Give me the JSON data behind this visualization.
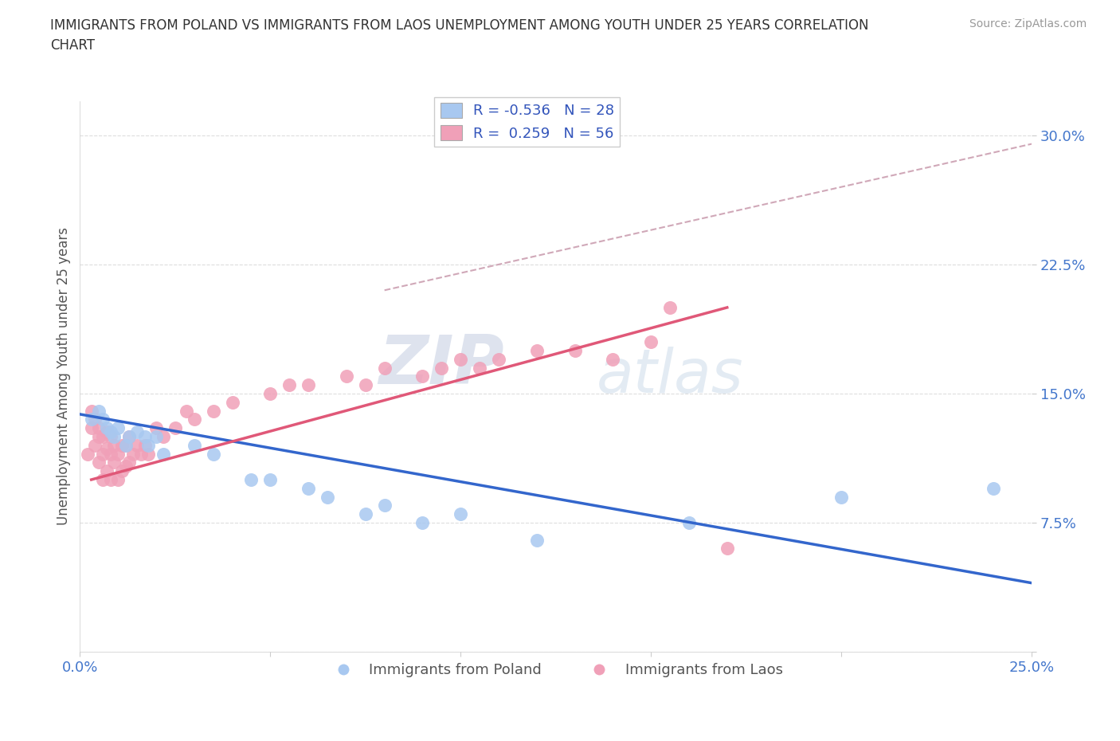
{
  "title": "IMMIGRANTS FROM POLAND VS IMMIGRANTS FROM LAOS UNEMPLOYMENT AMONG YOUTH UNDER 25 YEARS CORRELATION\nCHART",
  "source_text": "Source: ZipAtlas.com",
  "ylabel": "Unemployment Among Youth under 25 years",
  "xlim": [
    0.0,
    0.25
  ],
  "ylim": [
    0.0,
    0.32
  ],
  "poland_color": "#a8c8f0",
  "laos_color": "#f0a0b8",
  "poland_line_color": "#3366cc",
  "laos_line_color": "#e05878",
  "dashed_line_color": "#d0a8b8",
  "poland_R": -0.536,
  "poland_N": 28,
  "laos_R": 0.259,
  "laos_N": 56,
  "watermark_zip": "ZIP",
  "watermark_atlas": "atlas",
  "poland_scatter_x": [
    0.003,
    0.005,
    0.006,
    0.007,
    0.008,
    0.009,
    0.01,
    0.012,
    0.013,
    0.015,
    0.017,
    0.018,
    0.02,
    0.022,
    0.03,
    0.035,
    0.045,
    0.05,
    0.06,
    0.065,
    0.075,
    0.08,
    0.09,
    0.1,
    0.12,
    0.16,
    0.2,
    0.24
  ],
  "poland_scatter_y": [
    0.135,
    0.14,
    0.135,
    0.13,
    0.128,
    0.125,
    0.13,
    0.12,
    0.125,
    0.128,
    0.125,
    0.12,
    0.125,
    0.115,
    0.12,
    0.115,
    0.1,
    0.1,
    0.095,
    0.09,
    0.08,
    0.085,
    0.075,
    0.08,
    0.065,
    0.075,
    0.09,
    0.095
  ],
  "laos_scatter_x": [
    0.002,
    0.003,
    0.003,
    0.004,
    0.004,
    0.005,
    0.005,
    0.005,
    0.006,
    0.006,
    0.006,
    0.007,
    0.007,
    0.007,
    0.008,
    0.008,
    0.008,
    0.009,
    0.009,
    0.01,
    0.01,
    0.011,
    0.011,
    0.012,
    0.012,
    0.013,
    0.013,
    0.014,
    0.015,
    0.016,
    0.017,
    0.018,
    0.02,
    0.022,
    0.025,
    0.028,
    0.03,
    0.035,
    0.04,
    0.05,
    0.055,
    0.06,
    0.07,
    0.075,
    0.08,
    0.09,
    0.095,
    0.1,
    0.105,
    0.11,
    0.12,
    0.13,
    0.14,
    0.15,
    0.155,
    0.17
  ],
  "laos_scatter_y": [
    0.115,
    0.13,
    0.14,
    0.12,
    0.135,
    0.11,
    0.125,
    0.13,
    0.1,
    0.115,
    0.125,
    0.105,
    0.118,
    0.128,
    0.1,
    0.115,
    0.125,
    0.11,
    0.12,
    0.1,
    0.115,
    0.105,
    0.12,
    0.108,
    0.12,
    0.11,
    0.125,
    0.115,
    0.12,
    0.115,
    0.12,
    0.115,
    0.13,
    0.125,
    0.13,
    0.14,
    0.135,
    0.14,
    0.145,
    0.15,
    0.155,
    0.155,
    0.16,
    0.155,
    0.165,
    0.16,
    0.165,
    0.17,
    0.165,
    0.17,
    0.175,
    0.175,
    0.17,
    0.18,
    0.2,
    0.06
  ],
  "poland_line": [
    0.0,
    0.25,
    0.138,
    0.04
  ],
  "laos_line": [
    0.003,
    0.17,
    0.1,
    0.2
  ],
  "dashed_line": [
    0.08,
    0.25,
    0.21,
    0.295
  ],
  "background_color": "#ffffff",
  "legend_label_poland": "Immigrants from Poland",
  "legend_label_laos": "Immigrants from Laos"
}
